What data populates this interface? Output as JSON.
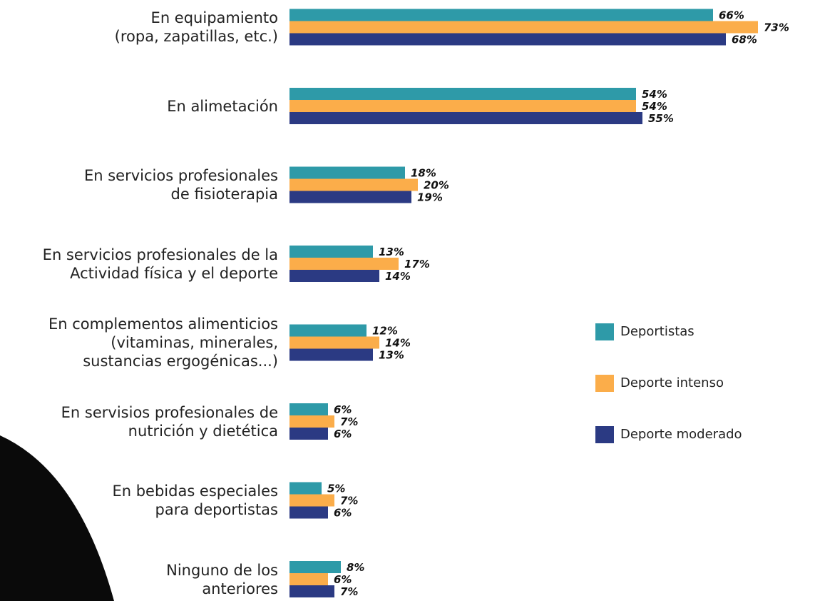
{
  "chart_data": {
    "type": "hbar",
    "categories": [
      "En equipamiento\n(ropa, zapatillas, etc.)",
      "En alimetación",
      "En servicios profesionales\nde fisioterapia",
      "En servicios profesionales de la\nActividad física y el deporte",
      "En complementos alimenticios\n(vitaminas, minerales,\nsustancias ergogénicas...)",
      "En servisios profesionales de\nnutrición y dietética",
      "En bebidas especiales\npara deportistas",
      "Ninguno de los\nanteriores"
    ],
    "series": [
      {
        "name": "Deportistas",
        "color": "#2e9aa8",
        "values": [
          66,
          54,
          18,
          13,
          12,
          6,
          5,
          8
        ],
        "value_labels": [
          "66%",
          "54%",
          "18%",
          "13%",
          "12%",
          "6%",
          "5%",
          "8%"
        ]
      },
      {
        "name": "Deporte intenso",
        "color": "#fbad4a",
        "values": [
          73,
          54,
          20,
          17,
          14,
          7,
          7,
          6
        ],
        "value_labels": [
          "73%",
          "54%",
          "20%",
          "17%",
          "14%",
          "7%",
          "7%",
          "6%"
        ]
      },
      {
        "name": "Deporte moderado",
        "color": "#2b3a83",
        "values": [
          68,
          55,
          19,
          14,
          13,
          6,
          6,
          7
        ],
        "value_labels": [
          "68%",
          "55%",
          "19%",
          "14%",
          "13%",
          "6%",
          "6%",
          "7%"
        ]
      }
    ],
    "xlim": [
      0,
      80
    ]
  }
}
